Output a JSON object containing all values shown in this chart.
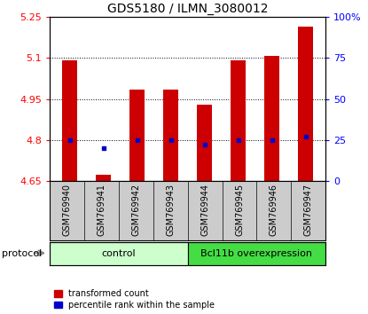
{
  "title": "GDS5180 / ILMN_3080012",
  "samples": [
    "GSM769940",
    "GSM769941",
    "GSM769942",
    "GSM769943",
    "GSM769944",
    "GSM769945",
    "GSM769946",
    "GSM769947"
  ],
  "transformed_counts": [
    5.093,
    4.672,
    4.983,
    4.983,
    4.928,
    5.093,
    5.108,
    5.215
  ],
  "percentile_ranks": [
    25,
    20,
    25,
    25,
    22,
    25,
    25,
    27
  ],
  "groups": [
    "control",
    "control",
    "control",
    "control",
    "Bcl11b overexpression",
    "Bcl11b overexpression",
    "Bcl11b overexpression",
    "Bcl11b overexpression"
  ],
  "ylim_left": [
    4.65,
    5.25
  ],
  "ylim_right": [
    0,
    100
  ],
  "yticks_left": [
    4.65,
    4.8,
    4.95,
    5.1,
    5.25
  ],
  "yticks_right": [
    0,
    25,
    50,
    75,
    100
  ],
  "bar_color": "#cc0000",
  "dot_color": "#0000cc",
  "bar_width": 0.45,
  "control_color": "#ccffcc",
  "overexpression_color": "#44dd44",
  "protocol_label": "protocol",
  "control_label": "control",
  "overexpression_label": "Bcl11b overexpression",
  "legend_bar_label": "transformed count",
  "legend_dot_label": "percentile rank within the sample",
  "title_fontsize": 10,
  "tick_fontsize": 8,
  "label_fontsize": 7,
  "proto_fontsize": 8
}
